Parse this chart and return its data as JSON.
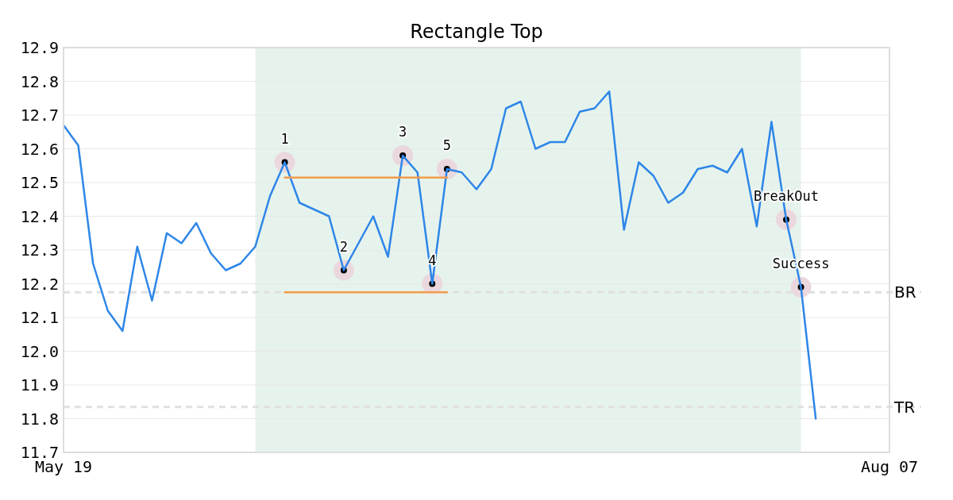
{
  "chart_data": {
    "type": "line",
    "title": "Rectangle Top",
    "categories": [
      "May 19",
      null,
      null,
      null,
      null,
      null,
      null,
      null,
      null,
      null,
      null,
      null,
      null,
      null,
      null,
      null,
      null,
      null,
      null,
      null,
      null,
      null,
      null,
      null,
      null,
      null,
      null,
      null,
      null,
      null,
      null,
      null,
      null,
      null,
      null,
      null,
      null,
      null,
      null,
      null,
      null,
      null,
      null,
      null,
      null,
      null,
      null,
      null,
      null,
      null,
      null,
      null,
      null,
      null,
      null,
      null,
      "Aug 07"
    ],
    "ylim": [
      11.7,
      12.9
    ],
    "yticks": [
      {
        "value": 11.7,
        "label": "11.7"
      },
      {
        "value": 11.8,
        "label": "11.8"
      },
      {
        "value": 11.9,
        "label": "11.9"
      },
      {
        "value": 12.0,
        "label": "12.0"
      },
      {
        "value": 12.1,
        "label": "12.1"
      },
      {
        "value": 12.2,
        "label": "12.2"
      },
      {
        "value": 12.3,
        "label": "12.3"
      },
      {
        "value": 12.4,
        "label": "12.4"
      },
      {
        "value": 12.5,
        "label": "12.5"
      },
      {
        "value": 12.6,
        "label": "12.6"
      },
      {
        "value": 12.7,
        "label": "12.7"
      },
      {
        "value": 12.8,
        "label": "12.8"
      },
      {
        "value": 12.9,
        "label": "12.9"
      }
    ],
    "grid": "y",
    "legend": false,
    "marker": "none",
    "line_style": "solid",
    "series": [
      {
        "color": "#2e86e8",
        "values": [
          12.67,
          12.61,
          12.26,
          12.12,
          12.06,
          12.31,
          12.15,
          12.35,
          12.32,
          12.38,
          12.29,
          12.24,
          12.26,
          12.31,
          12.46,
          12.56,
          12.44,
          12.42,
          12.4,
          12.24,
          12.32,
          12.4,
          12.28,
          12.58,
          12.53,
          12.2,
          12.54,
          12.53,
          12.48,
          12.54,
          12.72,
          12.74,
          12.6,
          12.62,
          12.62,
          12.71,
          12.72,
          12.77,
          12.36,
          12.56,
          12.52,
          12.44,
          12.47,
          12.54,
          12.55,
          12.53,
          12.6,
          12.37,
          12.68,
          12.39,
          12.19,
          11.8,
          null,
          null,
          null,
          null,
          null
        ]
      },
      {
        "type": "line",
        "color": "#f39c4a",
        "values": [
          null,
          null,
          null,
          null,
          null,
          null,
          null,
          null,
          null,
          null,
          null,
          null,
          null,
          null,
          null,
          12.515,
          12.515,
          12.515,
          12.515,
          12.515,
          12.515,
          12.515,
          12.515,
          12.515,
          12.515,
          12.515,
          12.515,
          null,
          null,
          null,
          null,
          null,
          null,
          null,
          null,
          null,
          null,
          null,
          null,
          null,
          null,
          null,
          null,
          null,
          null,
          null,
          null,
          null,
          null,
          null,
          null,
          null,
          null,
          null,
          null,
          null,
          null
        ]
      },
      {
        "type": "line",
        "color": "#f39c4a",
        "values": [
          null,
          null,
          null,
          null,
          null,
          null,
          null,
          null,
          null,
          null,
          null,
          null,
          null,
          null,
          null,
          12.175,
          12.175,
          12.175,
          12.175,
          12.175,
          12.175,
          12.175,
          12.175,
          12.175,
          12.175,
          12.175,
          12.175,
          null,
          null,
          null,
          null,
          null,
          null,
          null,
          null,
          null,
          null,
          null,
          null,
          null,
          null,
          null,
          null,
          null,
          null,
          null,
          null,
          null,
          null,
          null,
          null,
          null,
          null,
          null,
          null,
          null,
          null
        ]
      },
      {
        "type": "scatter",
        "marker": "circle",
        "color": "#000000",
        "values": [
          null,
          null,
          null,
          null,
          null,
          null,
          null,
          null,
          null,
          null,
          null,
          null,
          null,
          null,
          null,
          12.56,
          null,
          null,
          null,
          12.24,
          null,
          null,
          null,
          12.58,
          null,
          12.2,
          12.54,
          null,
          null,
          null,
          null,
          null,
          null,
          null,
          null,
          null,
          null,
          null,
          null,
          null,
          null,
          null,
          null,
          null,
          null,
          null,
          null,
          null,
          null,
          12.39,
          12.19,
          null,
          null,
          null,
          null,
          null,
          null
        ]
      }
    ],
    "ref_lines": [
      {
        "axis": "y",
        "value": 12.175,
        "label": "BR",
        "color": "#e0e0e0",
        "line_style": "dashed"
      },
      {
        "axis": "y",
        "value": 11.835,
        "label": "TR",
        "color": "#e0e0e0",
        "line_style": "dashed"
      }
    ],
    "annotations": [
      "1",
      "2",
      "3",
      "4",
      "5",
      "BreakOut",
      "Success"
    ]
  }
}
